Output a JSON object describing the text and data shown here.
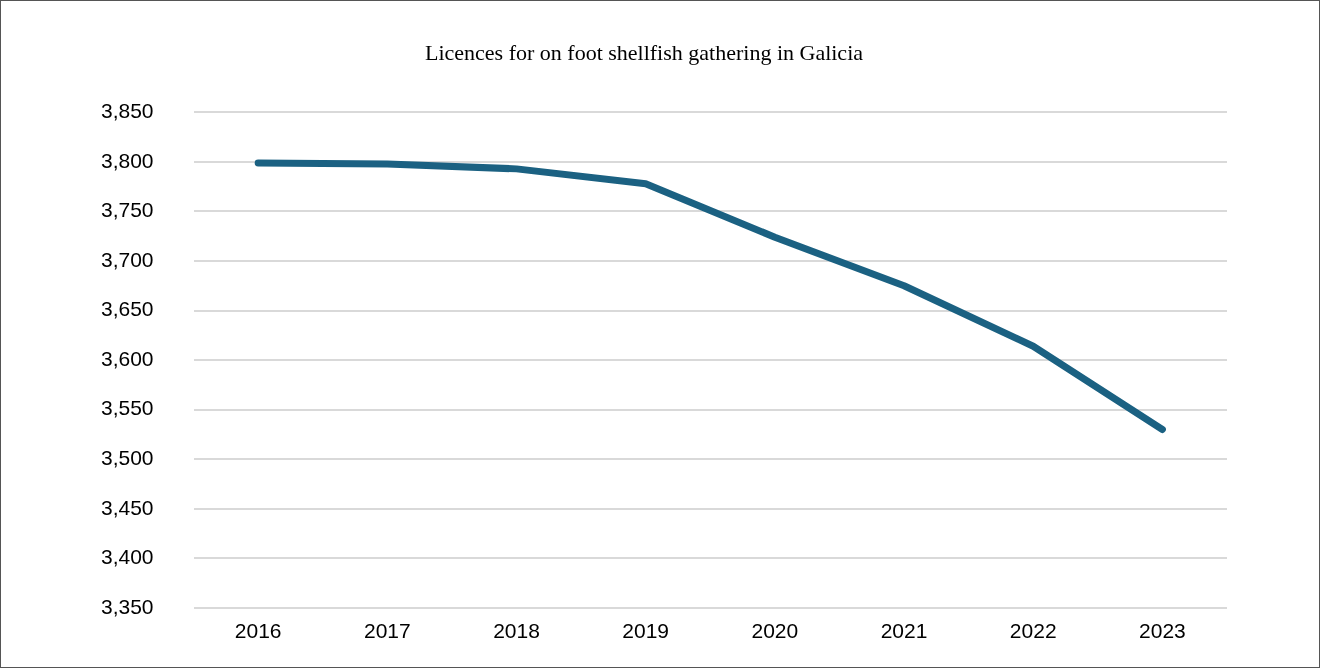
{
  "chart_data": {
    "type": "line",
    "title": "Licences for on foot shellfish gathering in Galicia",
    "categories": [
      "2016",
      "2017",
      "2018",
      "2019",
      "2020",
      "2021",
      "2022",
      "2023"
    ],
    "series": [
      {
        "color": "#1b6182",
        "values": [
          3799,
          3798,
          3793,
          3778,
          3724,
          3675,
          3614,
          3530
        ]
      }
    ],
    "ylim": [
      3350,
      3850
    ],
    "yticks": [
      {
        "value": 3350,
        "label": "3,350"
      },
      {
        "value": 3400,
        "label": "3,400"
      },
      {
        "value": 3450,
        "label": "3,450"
      },
      {
        "value": 3500,
        "label": "3,500"
      },
      {
        "value": 3550,
        "label": "3,550"
      },
      {
        "value": 3600,
        "label": "3,600"
      },
      {
        "value": 3650,
        "label": "3,650"
      },
      {
        "value": 3700,
        "label": "3,700"
      },
      {
        "value": 3750,
        "label": "3,750"
      },
      {
        "value": 3800,
        "label": "3,800"
      },
      {
        "value": 3850,
        "label": "3,850"
      }
    ],
    "grid": "y",
    "legend": false,
    "marker": "none",
    "line_style": "solid"
  }
}
